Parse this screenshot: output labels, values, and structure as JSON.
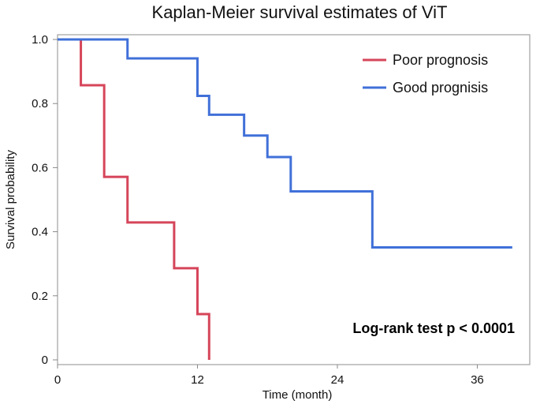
{
  "chart_data": {
    "type": "line",
    "step": true,
    "title": "Kaplan-Meier survival estimates of ViT",
    "xlabel": "Time (month)",
    "ylabel": "Survival probability",
    "xlim": [
      0,
      40.5
    ],
    "ylim": [
      0,
      1.0
    ],
    "xticks": [
      0,
      12,
      24,
      36
    ],
    "yticks": [
      0,
      0.2,
      0.4,
      0.6,
      0.8,
      1.0
    ],
    "ytick_labels": [
      "0",
      "0.2",
      "0.4",
      "0.6",
      "0.8",
      "1.0"
    ],
    "grid": false,
    "legend_position": "top-right",
    "series": [
      {
        "name": "Poor prognosis",
        "color": "#d6455a",
        "x": [
          0,
          2,
          4,
          6,
          10,
          12,
          13
        ],
        "y": [
          1.0,
          0.857,
          0.571,
          0.429,
          0.286,
          0.143,
          0
        ]
      },
      {
        "name": "Good prognisis",
        "color": "#4070d8",
        "x": [
          0,
          6,
          12,
          13,
          16,
          18,
          20,
          27,
          39
        ],
        "y": [
          1.0,
          0.941,
          0.824,
          0.765,
          0.7,
          0.633,
          0.526,
          0.351,
          0.351
        ]
      }
    ],
    "annotation": "Log-rank test p < 0.0001"
  }
}
